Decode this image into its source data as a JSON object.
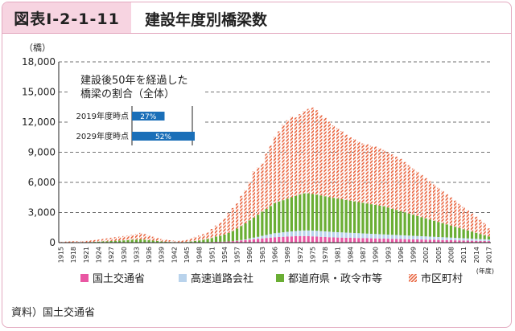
{
  "figure": {
    "id": "図表Ⅰ-2-1-11",
    "title": "建設年度別橋梁数",
    "source": "資料）国土交通省"
  },
  "chart_data": {
    "type": "bar",
    "stacked": true,
    "ylabel": "（橋）",
    "xlabel": "(年度)",
    "ylim": [
      0,
      18000
    ],
    "yticks": [
      "0",
      "3,000",
      "6,000",
      "9,000",
      "12,000",
      "15,000",
      "18,000"
    ],
    "grid": true,
    "legend_position": "bottom",
    "x": [
      1915,
      1916,
      1917,
      1918,
      1919,
      1920,
      1921,
      1922,
      1923,
      1924,
      1925,
      1926,
      1927,
      1928,
      1929,
      1930,
      1931,
      1932,
      1933,
      1934,
      1935,
      1936,
      1937,
      1938,
      1939,
      1940,
      1941,
      1942,
      1943,
      1944,
      1945,
      1946,
      1947,
      1948,
      1949,
      1950,
      1951,
      1952,
      1953,
      1954,
      1955,
      1956,
      1957,
      1958,
      1959,
      1960,
      1961,
      1962,
      1963,
      1964,
      1965,
      1966,
      1967,
      1968,
      1969,
      1970,
      1971,
      1972,
      1973,
      1974,
      1975,
      1976,
      1977,
      1978,
      1979,
      1980,
      1981,
      1982,
      1983,
      1984,
      1985,
      1986,
      1987,
      1988,
      1989,
      1990,
      1991,
      1992,
      1993,
      1994,
      1995,
      1996,
      1997,
      1998,
      1999,
      2000,
      2001,
      2002,
      2003,
      2004,
      2005,
      2006,
      2007,
      2008,
      2009,
      2010,
      2011,
      2012,
      2013,
      2014,
      2015,
      2016,
      2017
    ],
    "x_tick_labels": [
      "1915",
      "1918",
      "1921",
      "1924",
      "1927",
      "1930",
      "1933",
      "1936",
      "1939",
      "1942",
      "1945",
      "1948",
      "1951",
      "1954",
      "1957",
      "1960",
      "1963",
      "1966",
      "1969",
      "1972",
      "1975",
      "1978",
      "1981",
      "1984",
      "1987",
      "1990",
      "1993",
      "1996",
      "1999",
      "2002",
      "2005",
      "2008",
      "2011",
      "2014",
      "2017"
    ],
    "series": [
      {
        "name": "国土交通省",
        "color": "#e957a3",
        "values": [
          5,
          5,
          5,
          10,
          10,
          10,
          10,
          15,
          15,
          20,
          20,
          20,
          25,
          25,
          30,
          30,
          30,
          35,
          40,
          40,
          35,
          30,
          25,
          20,
          15,
          15,
          10,
          10,
          10,
          10,
          10,
          15,
          20,
          25,
          30,
          40,
          60,
          80,
          90,
          100,
          120,
          150,
          180,
          220,
          260,
          300,
          340,
          380,
          420,
          460,
          500,
          540,
          560,
          580,
          600,
          620,
          640,
          650,
          650,
          640,
          620,
          600,
          580,
          560,
          540,
          520,
          510,
          500,
          490,
          480,
          470,
          460,
          450,
          440,
          430,
          420,
          410,
          400,
          390,
          380,
          370,
          360,
          350,
          340,
          330,
          320,
          310,
          300,
          290,
          280,
          270,
          260,
          250,
          240,
          230,
          220,
          210,
          200,
          190,
          180,
          170,
          160,
          150
        ]
      },
      {
        "name": "高速道路会社",
        "color": "#b9d3ec",
        "values": [
          0,
          0,
          0,
          0,
          0,
          0,
          0,
          0,
          0,
          0,
          0,
          0,
          0,
          0,
          0,
          0,
          0,
          0,
          0,
          0,
          0,
          0,
          0,
          0,
          0,
          0,
          0,
          0,
          0,
          0,
          0,
          0,
          0,
          0,
          0,
          0,
          0,
          0,
          0,
          0,
          0,
          0,
          20,
          40,
          60,
          120,
          160,
          200,
          260,
          300,
          350,
          400,
          420,
          450,
          480,
          500,
          520,
          540,
          560,
          570,
          580,
          580,
          570,
          560,
          550,
          540,
          530,
          520,
          510,
          500,
          490,
          480,
          470,
          460,
          450,
          440,
          430,
          420,
          410,
          400,
          390,
          380,
          370,
          360,
          350,
          340,
          330,
          320,
          310,
          300,
          290,
          280,
          270,
          260,
          250,
          240,
          230,
          220,
          210,
          200,
          190,
          180,
          170
        ]
      },
      {
        "name": "都道府県・政令市等",
        "color": "#6aae34",
        "values": [
          20,
          25,
          25,
          30,
          30,
          35,
          40,
          50,
          60,
          80,
          100,
          120,
          140,
          160,
          180,
          200,
          220,
          250,
          260,
          280,
          260,
          220,
          180,
          140,
          100,
          80,
          60,
          50,
          40,
          40,
          60,
          100,
          150,
          200,
          260,
          320,
          400,
          520,
          600,
          700,
          850,
          1000,
          1200,
          1400,
          1600,
          1800,
          2000,
          2200,
          2400,
          2600,
          2800,
          3000,
          3100,
          3200,
          3300,
          3400,
          3500,
          3600,
          3700,
          3700,
          3650,
          3600,
          3550,
          3500,
          3450,
          3400,
          3350,
          3300,
          3250,
          3200,
          3150,
          3100,
          3050,
          3000,
          2950,
          2900,
          2850,
          2800,
          2700,
          2600,
          2500,
          2400,
          2300,
          2200,
          2100,
          2000,
          1900,
          1800,
          1700,
          1600,
          1500,
          1400,
          1300,
          1200,
          1100,
          1000,
          900,
          800,
          700,
          600,
          500,
          400,
          300
        ]
      },
      {
        "name": "市区町村",
        "color": "#ef7d5a",
        "values": [
          70,
          80,
          90,
          100,
          110,
          120,
          130,
          150,
          180,
          200,
          240,
          280,
          320,
          360,
          380,
          420,
          450,
          500,
          550,
          650,
          560,
          450,
          380,
          300,
          240,
          200,
          170,
          150,
          140,
          150,
          200,
          300,
          400,
          480,
          560,
          640,
          900,
          1100,
          1300,
          1600,
          2000,
          2300,
          2500,
          3000,
          3300,
          3800,
          4600,
          4700,
          4800,
          5500,
          6000,
          6600,
          7000,
          7500,
          7800,
          8000,
          7800,
          8000,
          8200,
          8400,
          8600,
          8400,
          8000,
          7800,
          7500,
          7200,
          7000,
          6800,
          6500,
          6300,
          6200,
          6000,
          5900,
          5900,
          5800,
          5800,
          5700,
          5600,
          5500,
          5400,
          5300,
          5200,
          5000,
          4800,
          4600,
          4400,
          4200,
          4000,
          3800,
          3600,
          3400,
          3200,
          3000,
          2800,
          2600,
          2400,
          2200,
          2000,
          1800,
          1600,
          1400,
          1200,
          800
        ]
      }
    ],
    "inset": {
      "title_line1": "建設後50年を経過した",
      "title_line2": "橋梁の割合（全体）",
      "bars": [
        {
          "label": "2019年度時点",
          "value": 27,
          "text": "27%"
        },
        {
          "label": "2029年度時点",
          "value": 52,
          "text": "52%"
        }
      ],
      "bar_color": "#1b6fb8"
    }
  }
}
